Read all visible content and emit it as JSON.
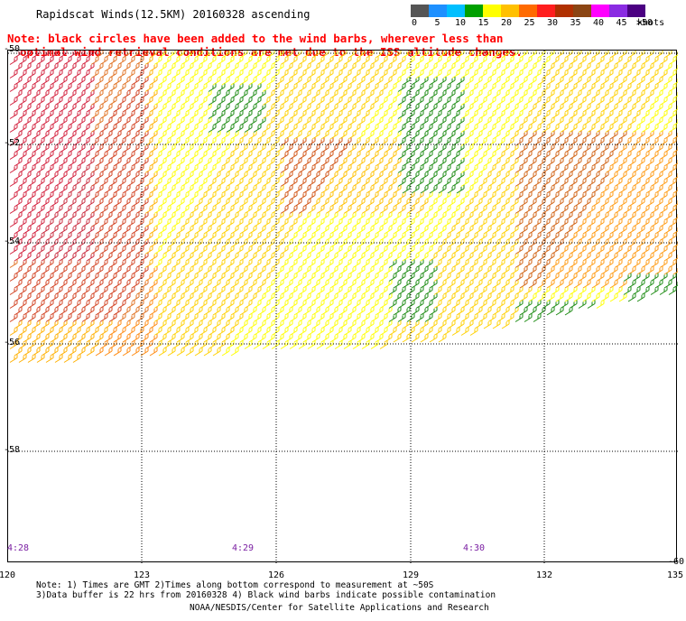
{
  "title": "Rapidscat Winds(12.5KM) 20160328 ascending",
  "note_line1": "Note: black circles have been added to the wind barbs, wherever less than",
  "note_line2": "optimal wind retrieval conditions are met due to the ISS altitude changes.",
  "colorbar": {
    "labels": [
      "0",
      "5",
      "10",
      "15",
      "20",
      "25",
      "30",
      "35",
      "40",
      "45",
      ">50"
    ],
    "units": "knots",
    "colors": [
      "#555555",
      "#1e90ff",
      "#00bfff",
      "#00a000",
      "#ffff00",
      "#ffc000",
      "#ff6a00",
      "#ff1e1e",
      "#b03000",
      "#8b4513",
      "#ff00ff",
      "#8a2be2",
      "#4b0082"
    ]
  },
  "axes": {
    "lat_labels": [
      "-50",
      "-52",
      "-54",
      "-56",
      "-58",
      "-60"
    ],
    "lon_labels": [
      "120",
      "123",
      "126",
      "129",
      "132",
      "135"
    ]
  },
  "time_labels": [
    "4:28",
    "4:29",
    "4:30"
  ],
  "footer": {
    "line1": "Note: 1) Times are GMT 2)Times along bottom correspond to measurement at ~50S",
    "line2": "3)Data buffer is 22 hrs from 20160328 4) Black wind barbs indicate possible contamination",
    "line3": "NOAA/NESDIS/Center for Satellite Applications and Research"
  }
}
